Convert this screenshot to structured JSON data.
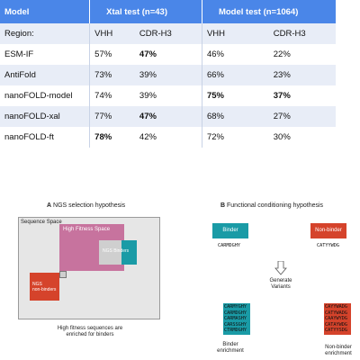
{
  "table": {
    "header": {
      "model": "Model",
      "xtal": "Xtal test (n=43)",
      "modeltest": "Model test (n=1064)"
    },
    "region_row": {
      "label": "Region:",
      "c1": "VHH",
      "c2": "CDR-H3",
      "c3": "VHH",
      "c4": "CDR-H3"
    },
    "rows": [
      {
        "name": "ESM-IF",
        "v1": "57%",
        "v2": "47%",
        "v3": "46%",
        "v4": "22%"
      },
      {
        "name": "AntiFold",
        "v1": "73%",
        "v2": "39%",
        "v3": "66%",
        "v4": "23%"
      },
      {
        "name": "nanoFOLD-model",
        "v1": "74%",
        "v2": "39%",
        "v3": "75%",
        "v4": "37%"
      },
      {
        "name": "nanoFOLD-xal",
        "v1": "77%",
        "v2": "47%",
        "v3": "68%",
        "v4": "27%"
      },
      {
        "name": "nanoFOLD-ft",
        "v1": "78%",
        "v2": "42%",
        "v3": "72%",
        "v4": "30%"
      }
    ]
  },
  "panel_a": {
    "label": "A",
    "title": "NGS selection hypothesis",
    "sequence_space": "Sequence Space",
    "high_fitness": "High Fitness Space",
    "ngs_binders": "NGS Binders",
    "ngs_non_binders_1": "NGS",
    "ngs_non_binders_2": "non-binders",
    "caption_1": "High fitness sequences are",
    "caption_2": "enriched for binders"
  },
  "panel_b": {
    "label": "B",
    "title": "Functional conditioning hypothesis",
    "binder": "Binder",
    "non_binder": "Non-binder",
    "binder_seq": "CARMDGHY",
    "non_binder_seq": "CATYYWDG",
    "generate_1": "Generate",
    "generate_2": "Variants",
    "binder_variants": [
      "CARMYGHY",
      "CARMDGHY",
      "CARMASHY",
      "CARSSGHY",
      "CTRMDGHY"
    ],
    "non_binder_variants": [
      "CAYYWADG",
      "CATYWADG",
      "CAAYWYDG",
      "CATAYWDG",
      "CATYYSDG"
    ],
    "binder_enrichment_1": "Binder",
    "binder_enrichment_2": "enrichment",
    "non_binder_enrichment_1": "Non-binder",
    "non_binder_enrichment_2": "enrichment"
  },
  "colors": {
    "header_blue": "#4a86e8",
    "row_tint": "#e8edf7",
    "teal": "#1a9ba6",
    "red": "#d5432b",
    "pink": "#c7739e",
    "gray": "#c9c9c9"
  }
}
